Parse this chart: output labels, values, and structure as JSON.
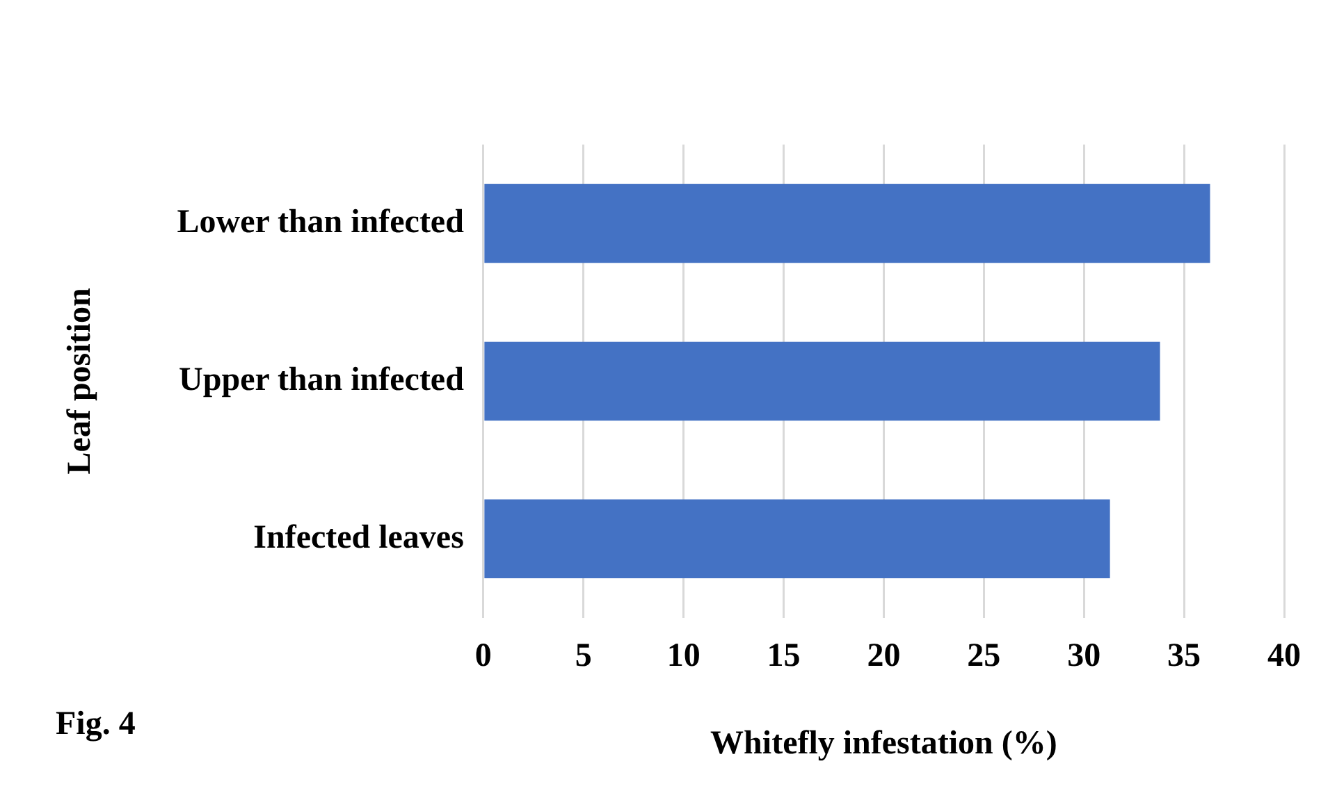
{
  "chart_data": {
    "type": "bar",
    "orientation": "horizontal",
    "categories": [
      "Lower than infected",
      "Upper than infected",
      "Infected leaves"
    ],
    "values": [
      36.3,
      33.8,
      31.3
    ],
    "color": "#4472c4",
    "xlabel": "Whitefly infestation (%)",
    "ylabel": "Leaf position",
    "xlim": [
      0,
      40
    ],
    "xticks": [
      0,
      5,
      10,
      15,
      20,
      25,
      30,
      35,
      40
    ],
    "grid": "x",
    "legend": false,
    "annotations": [
      "Fig. 4"
    ]
  }
}
